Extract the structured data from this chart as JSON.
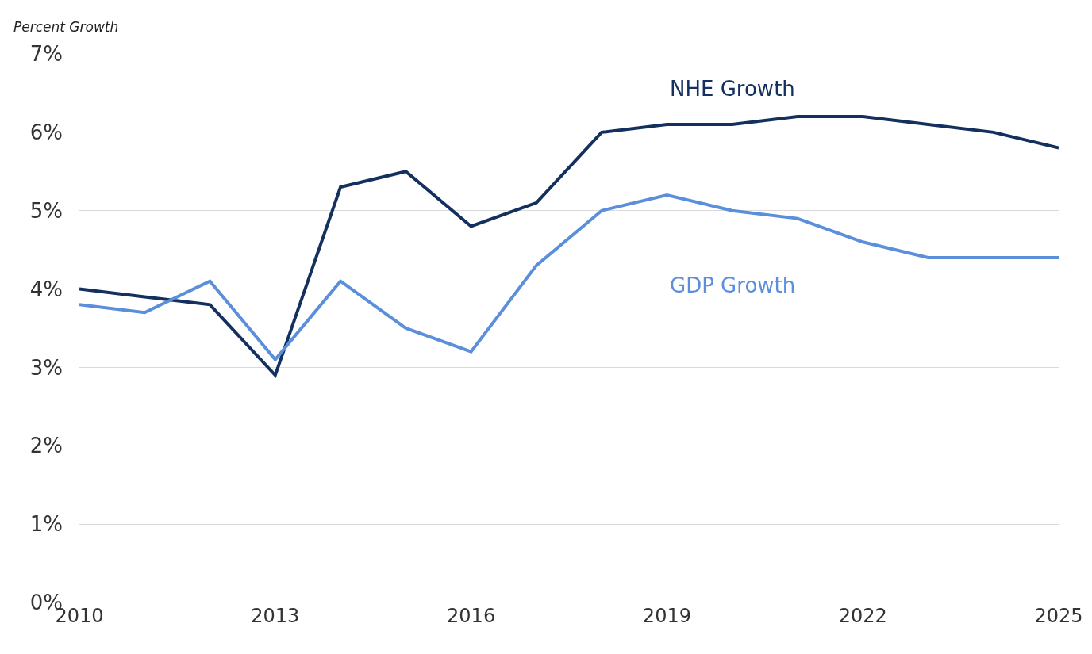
{
  "chart_data": {
    "type": "line",
    "ylabel": "Percent Growth",
    "x": [
      2010,
      2011,
      2012,
      2013,
      2014,
      2015,
      2016,
      2017,
      2018,
      2019,
      2020,
      2021,
      2022,
      2023,
      2024,
      2025
    ],
    "series": [
      {
        "name": "NHE Growth",
        "color": "#14305f",
        "values": [
          4.0,
          3.9,
          3.8,
          2.9,
          5.3,
          5.5,
          4.8,
          5.1,
          6.0,
          6.1,
          6.1,
          6.2,
          6.2,
          6.1,
          6.0,
          5.8
        ]
      },
      {
        "name": "GDP Growth",
        "color": "#5b8fdc",
        "values": [
          3.8,
          3.7,
          4.1,
          3.1,
          4.1,
          3.5,
          3.2,
          4.3,
          5.0,
          5.2,
          5.0,
          4.9,
          4.6,
          4.4,
          4.4,
          4.4
        ]
      }
    ],
    "xlim": [
      2010,
      2025
    ],
    "xticks": [
      2010,
      2013,
      2016,
      2019,
      2022,
      2025
    ],
    "ylim": [
      0,
      7
    ],
    "yticks": [
      {
        "value": 0,
        "label": "0%"
      },
      {
        "value": 1,
        "label": "1%"
      },
      {
        "value": 2,
        "label": "2%"
      },
      {
        "value": 3,
        "label": "3%"
      },
      {
        "value": 4,
        "label": "4%"
      },
      {
        "value": 5,
        "label": "5%"
      },
      {
        "value": 6,
        "label": "6%"
      },
      {
        "value": 7,
        "label": "7%"
      }
    ],
    "grid": "y",
    "legend": false,
    "marker": "none",
    "line_style": "solid"
  }
}
